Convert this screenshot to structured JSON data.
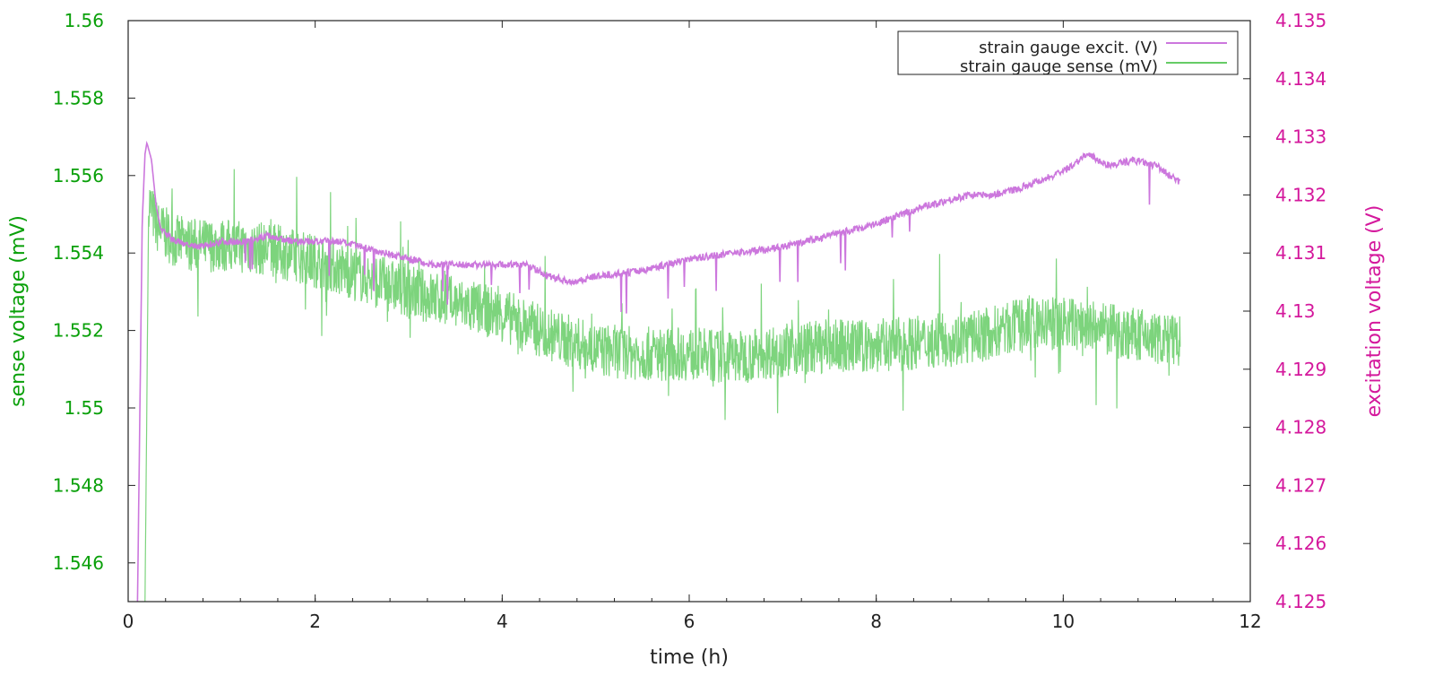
{
  "chart_data": {
    "type": "line",
    "title": "",
    "xlabel": "time (h)",
    "ylabel_left": "sense voltage (mV)",
    "ylabel_right": "excitation voltage (V)",
    "xlim": [
      0,
      12
    ],
    "ylim_left": [
      1.545,
      1.56
    ],
    "ylim_right": [
      4.125,
      4.135
    ],
    "x_ticks": [
      "0",
      "2",
      "4",
      "6",
      "8",
      "10",
      "12"
    ],
    "y_left_ticks": [
      "1.546",
      "1.548",
      "1.55",
      "1.552",
      "1.554",
      "1.556",
      "1.558",
      "1.56"
    ],
    "y_right_ticks": [
      "4.125",
      "4.126",
      "4.127",
      "4.128",
      "4.129",
      "4.13",
      "4.131",
      "4.132",
      "4.133",
      "4.134",
      "4.135"
    ],
    "grid": false,
    "legend_position": "top-right",
    "series": [
      {
        "name": "strain gauge excit. (V)",
        "axis": "right",
        "color": "#cc77dd",
        "x": [
          0.1,
          0.15,
          0.18,
          0.2,
          0.25,
          0.3,
          0.35,
          0.5,
          0.75,
          1.0,
          1.25,
          1.5,
          1.75,
          2.0,
          2.25,
          2.5,
          2.75,
          3.0,
          3.25,
          3.5,
          4.0,
          4.25,
          4.5,
          4.75,
          5.0,
          5.5,
          6.0,
          6.5,
          7.0,
          7.5,
          8.0,
          8.5,
          9.0,
          9.25,
          9.5,
          10.0,
          10.25,
          10.5,
          10.75,
          11.0,
          11.25
        ],
        "y": [
          4.125,
          4.1315,
          4.1327,
          4.1329,
          4.1326,
          4.1318,
          4.1314,
          4.1312,
          4.1311,
          4.1312,
          4.1312,
          4.1313,
          4.1312,
          4.1312,
          4.1312,
          4.1311,
          4.131,
          4.1309,
          4.1308,
          4.1308,
          4.1308,
          4.1308,
          4.1306,
          4.1305,
          4.1306,
          4.1307,
          4.1309,
          4.131,
          4.1311,
          4.1313,
          4.1315,
          4.1318,
          4.132,
          4.132,
          4.1321,
          4.1324,
          4.1327,
          4.1325,
          4.1326,
          4.1325,
          4.1322
        ]
      },
      {
        "name": "strain gauge sense (mV)",
        "axis": "left",
        "color": "#66cc66",
        "x": [
          0.18,
          0.22,
          0.3,
          0.5,
          0.75,
          1.0,
          1.5,
          2.0,
          2.5,
          3.0,
          3.5,
          4.0,
          4.5,
          5.0,
          5.5,
          6.0,
          6.5,
          7.0,
          7.5,
          8.0,
          8.5,
          9.0,
          9.5,
          10.0,
          10.5,
          11.0,
          11.25
        ],
        "y": [
          1.545,
          1.5554,
          1.5547,
          1.5543,
          1.5542,
          1.5542,
          1.5541,
          1.5538,
          1.5534,
          1.553,
          1.5527,
          1.5524,
          1.5519,
          1.5515,
          1.5514,
          1.5514,
          1.5513,
          1.5515,
          1.5516,
          1.5516,
          1.5517,
          1.5518,
          1.5521,
          1.5522,
          1.552,
          1.5518,
          1.5517
        ]
      }
    ]
  }
}
